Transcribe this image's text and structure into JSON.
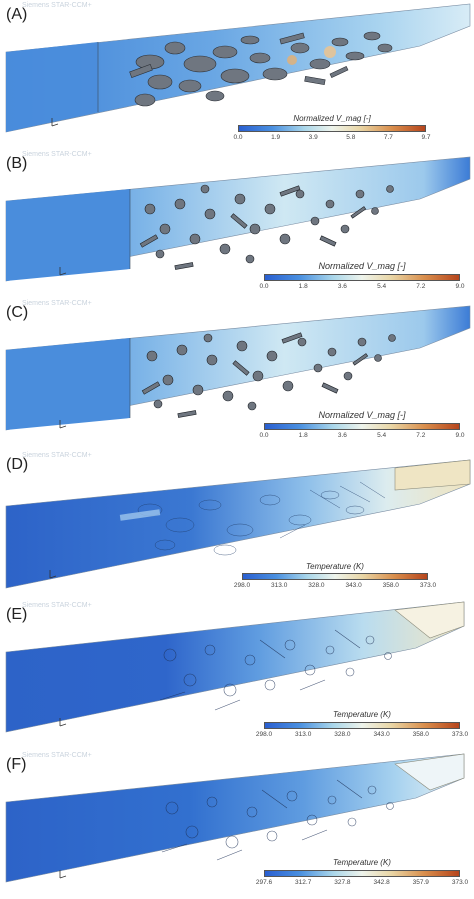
{
  "watermark": "Siemens STAR-CCM+",
  "panels": [
    {
      "label": "(A)",
      "colorbar_title": "Normalized V_mag [-]",
      "ticks": [
        "0.0",
        "1.9",
        "3.9",
        "5.8",
        "7.7",
        "9.7"
      ]
    },
    {
      "label": "(B)",
      "colorbar_title": "Normalized V_mag [-]",
      "ticks": [
        "0.0",
        "1.8",
        "3.6",
        "5.4",
        "7.2",
        "9.0"
      ]
    },
    {
      "label": "(C)",
      "colorbar_title": "Normalized V_mag [-]",
      "ticks": [
        "0.0",
        "1.8",
        "3.6",
        "5.4",
        "7.2",
        "9.0"
      ]
    },
    {
      "label": "(D)",
      "colorbar_title": "Temperature (K)",
      "ticks": [
        "298.0",
        "313.0",
        "328.0",
        "343.0",
        "358.0",
        "373.0"
      ]
    },
    {
      "label": "(E)",
      "colorbar_title": "Temperature (K)",
      "ticks": [
        "298.0",
        "313.0",
        "328.0",
        "343.0",
        "358.0",
        "373.0"
      ]
    },
    {
      "label": "(F)",
      "colorbar_title": "Temperature (K)",
      "ticks": [
        "297.6",
        "312.7",
        "327.8",
        "342.8",
        "357.9",
        "373.0"
      ]
    }
  ],
  "colors": {
    "inlet_blue": "#3f7fd6",
    "deep_blue": "#2d63c8",
    "light_cyan": "#bfe3f0",
    "warm_beige": "#efe5c4",
    "particle_gray": "#6f7680"
  }
}
